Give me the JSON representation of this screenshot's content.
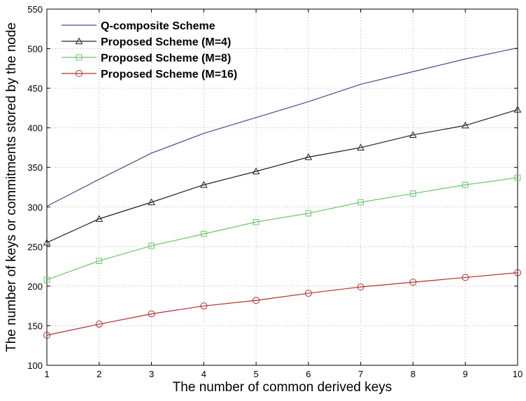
{
  "chart_data": {
    "type": "line",
    "title": "",
    "xlabel": "The number of common derived keys",
    "ylabel": "The number of keys or commitments stored by the node",
    "xlim": [
      1,
      10
    ],
    "ylim": [
      100,
      550
    ],
    "x": [
      1,
      2,
      3,
      4,
      5,
      6,
      7,
      8,
      9,
      10
    ],
    "xticks": [
      1,
      2,
      3,
      4,
      5,
      6,
      7,
      8,
      9,
      10
    ],
    "yticks": [
      100,
      150,
      200,
      250,
      300,
      350,
      400,
      450,
      500,
      550
    ],
    "grid": true,
    "legend_position": "top-left",
    "series": [
      {
        "name": "Q-composite Scheme",
        "color": "#4a4a8c",
        "marker": "none",
        "values": [
          301,
          335,
          368,
          393,
          413,
          433,
          455,
          471,
          487,
          501
        ]
      },
      {
        "name": "Proposed Scheme (M=4)",
        "color": "#202020",
        "marker": "triangle",
        "values": [
          255,
          285,
          306,
          328,
          345,
          363,
          375,
          391,
          403,
          423
        ]
      },
      {
        "name": "Proposed Scheme (M=8)",
        "color": "#6cc46c",
        "marker": "square",
        "values": [
          208,
          232,
          251,
          266,
          281,
          292,
          306,
          317,
          328,
          337
        ]
      },
      {
        "name": "Proposed Scheme (M=16)",
        "color": "#b03030",
        "marker": "circle",
        "values": [
          138,
          152,
          165,
          175,
          182,
          191,
          199,
          205,
          211,
          217
        ]
      }
    ]
  }
}
